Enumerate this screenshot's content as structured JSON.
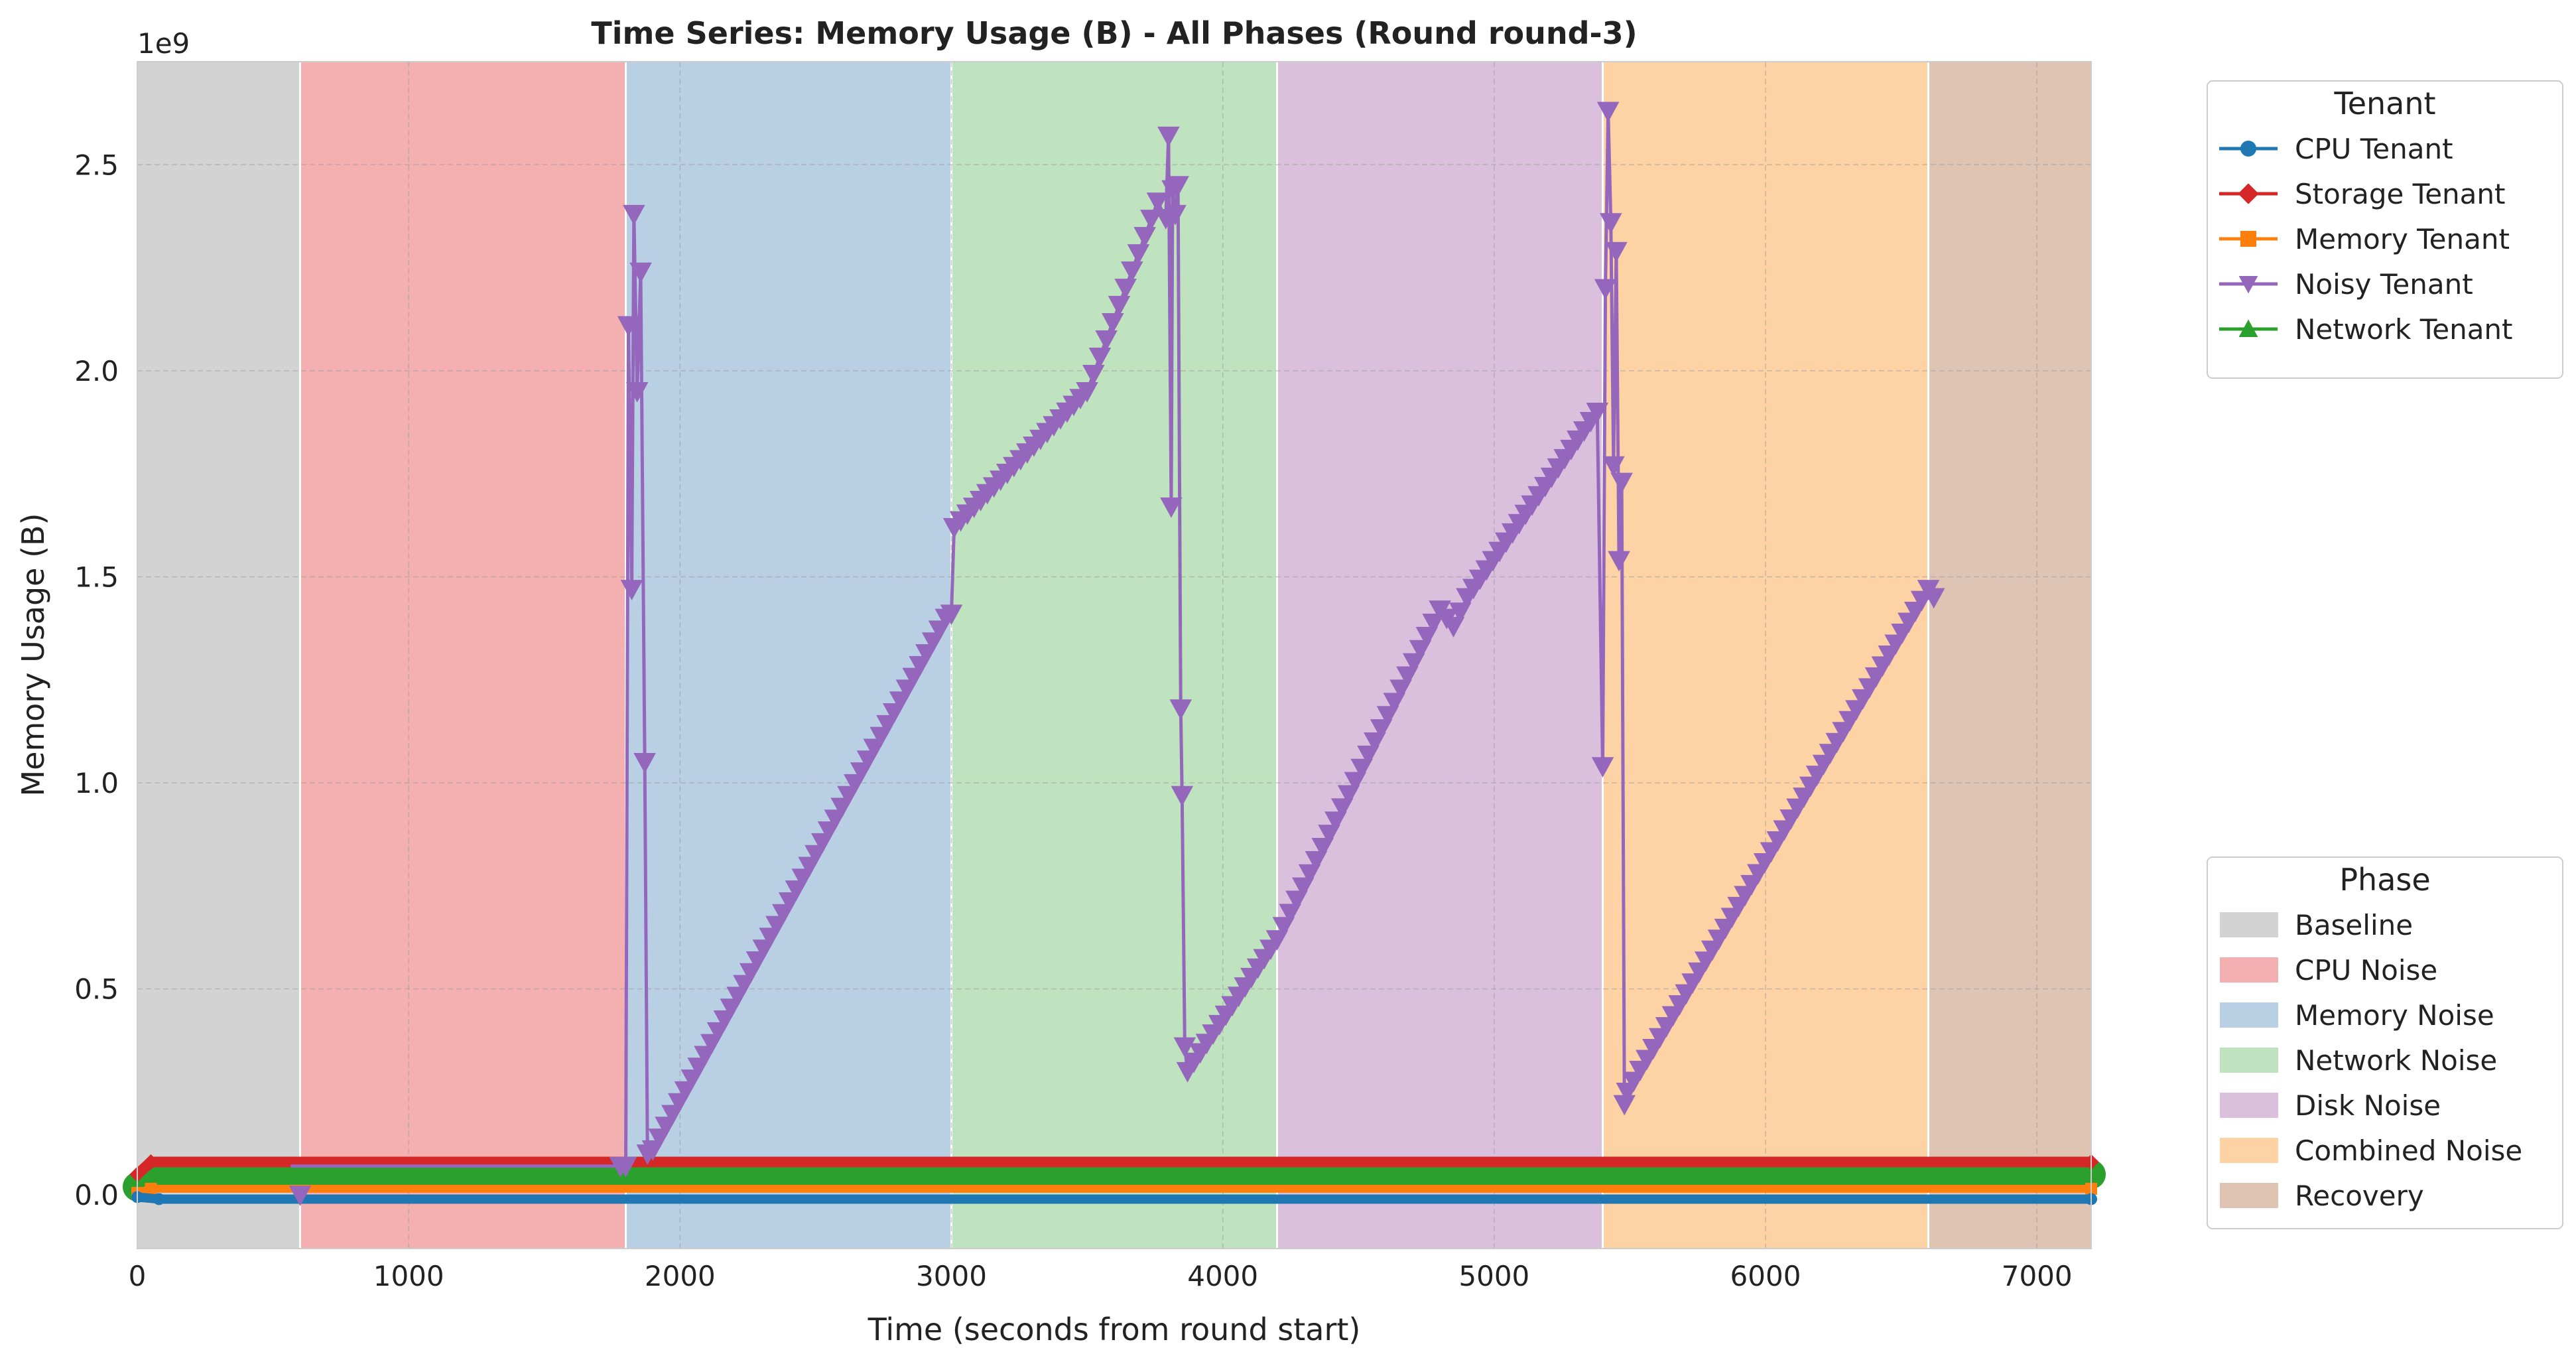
{
  "chart_data": {
    "type": "line",
    "title": "Time Series: Memory Usage (B) - All Phases (Round round-3)",
    "xlabel": "Time (seconds from round start)",
    "ylabel": "Memory Usage (B)",
    "y_offset_text": "1e9",
    "y_multiplier": 1000000000,
    "xlim": [
      0,
      7200
    ],
    "ylim": [
      -0.13,
      2.75
    ],
    "x_ticks": [
      0,
      1000,
      2000,
      3000,
      4000,
      5000,
      6000,
      7000
    ],
    "y_ticks": [
      0.0,
      0.5,
      1.0,
      1.5,
      2.0,
      2.5
    ],
    "grid": true,
    "phases": [
      {
        "name": "Baseline",
        "start": 0,
        "end": 600,
        "color": "#d3d3d3"
      },
      {
        "name": "CPU Noise",
        "start": 600,
        "end": 1800,
        "color": "#f4b0b0"
      },
      {
        "name": "Memory Noise",
        "start": 1800,
        "end": 3000,
        "color": "#b9d0e4"
      },
      {
        "name": "Network Noise",
        "start": 3000,
        "end": 4200,
        "color": "#c0e3bf"
      },
      {
        "name": "Disk Noise",
        "start": 4200,
        "end": 5400,
        "color": "#dbc0dd"
      },
      {
        "name": "Combined Noise",
        "start": 5400,
        "end": 6600,
        "color": "#fdd3a6"
      },
      {
        "name": "Recovery",
        "start": 6600,
        "end": 7200,
        "color": "#dfc4b3"
      }
    ],
    "series": [
      {
        "name": "CPU Tenant",
        "marker": "circle",
        "color": "#1f77b4",
        "x": [
          0,
          80,
          7200
        ],
        "y": [
          -0.005,
          -0.01,
          -0.01
        ]
      },
      {
        "name": "Storage Tenant",
        "marker": "diamond",
        "color": "#d62728",
        "x": [
          0,
          50,
          7200
        ],
        "y": [
          0.05,
          0.08,
          0.08
        ]
      },
      {
        "name": "Memory Tenant",
        "marker": "square",
        "color": "#ff7f0e",
        "x": [
          0,
          50,
          7200
        ],
        "y": [
          0.005,
          0.015,
          0.015
        ]
      },
      {
        "name": "Noisy Tenant",
        "marker": "triangle-down",
        "color": "#9467bd",
        "x": [
          570,
          600,
          1780,
          1800,
          1810,
          1822,
          1830,
          1842,
          1855,
          1870,
          1880,
          1900,
          2980,
          3000,
          3010,
          3500,
          3760,
          3790,
          3800,
          3810,
          3815,
          3825,
          3835,
          3845,
          3850,
          3860,
          3870,
          4200,
          4800,
          4850,
          4900,
          5380,
          5400,
          5410,
          5420,
          5430,
          5440,
          5450,
          5460,
          5470,
          5480,
          5490,
          6600,
          6620
        ],
        "y": [
          0.07,
          0.07,
          0.07,
          0.07,
          2.11,
          1.47,
          2.38,
          1.95,
          2.24,
          1.05,
          0.1,
          0.11,
          1.4,
          1.41,
          1.62,
          1.95,
          2.41,
          2.37,
          2.57,
          1.67,
          2.44,
          2.38,
          2.45,
          1.18,
          0.97,
          0.36,
          0.3,
          0.62,
          1.42,
          1.38,
          1.45,
          1.9,
          1.04,
          2.2,
          2.63,
          2.36,
          1.77,
          2.29,
          1.54,
          1.73,
          0.22,
          0.25,
          1.47,
          1.45
        ]
      },
      {
        "name": "Network Tenant",
        "marker": "triangle-up",
        "color": "#2ca02c",
        "x": [
          0,
          60,
          7200
        ],
        "y": [
          0.02,
          0.05,
          0.05
        ]
      }
    ],
    "legends": [
      {
        "title": "Tenant",
        "placement": "upper right outside"
      },
      {
        "title": "Phase",
        "placement": "lower right outside"
      }
    ]
  }
}
